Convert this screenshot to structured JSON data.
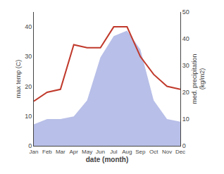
{
  "chart_data": {
    "type": "line",
    "xlabel": "date (month)",
    "ylabel": "max temp (C)",
    "y2label": "med. precipitation\n(kg/m2)",
    "categories": [
      "Jan",
      "Feb",
      "Mar",
      "Apr",
      "May",
      "Jun",
      "Jul",
      "Aug",
      "Sep",
      "Oct",
      "Nov",
      "Dec"
    ],
    "series": [
      {
        "type": "area",
        "axis": "y2",
        "color": "#b8bfe8",
        "values": [
          8,
          10,
          10,
          11,
          17,
          33,
          41,
          43,
          36,
          17,
          10,
          9
        ]
      },
      {
        "type": "line",
        "axis": "y",
        "color": "#c0392b",
        "values": [
          15,
          18,
          19,
          34,
          33,
          33,
          40,
          40,
          30,
          24,
          20,
          19
        ]
      }
    ],
    "ylim": [
      0,
      45
    ],
    "yticks": [
      0,
      10,
      20,
      30,
      40
    ],
    "y2lim": [
      0,
      50
    ],
    "y2ticks": [
      0,
      10,
      20,
      30,
      40,
      50
    ],
    "grid": false
  }
}
